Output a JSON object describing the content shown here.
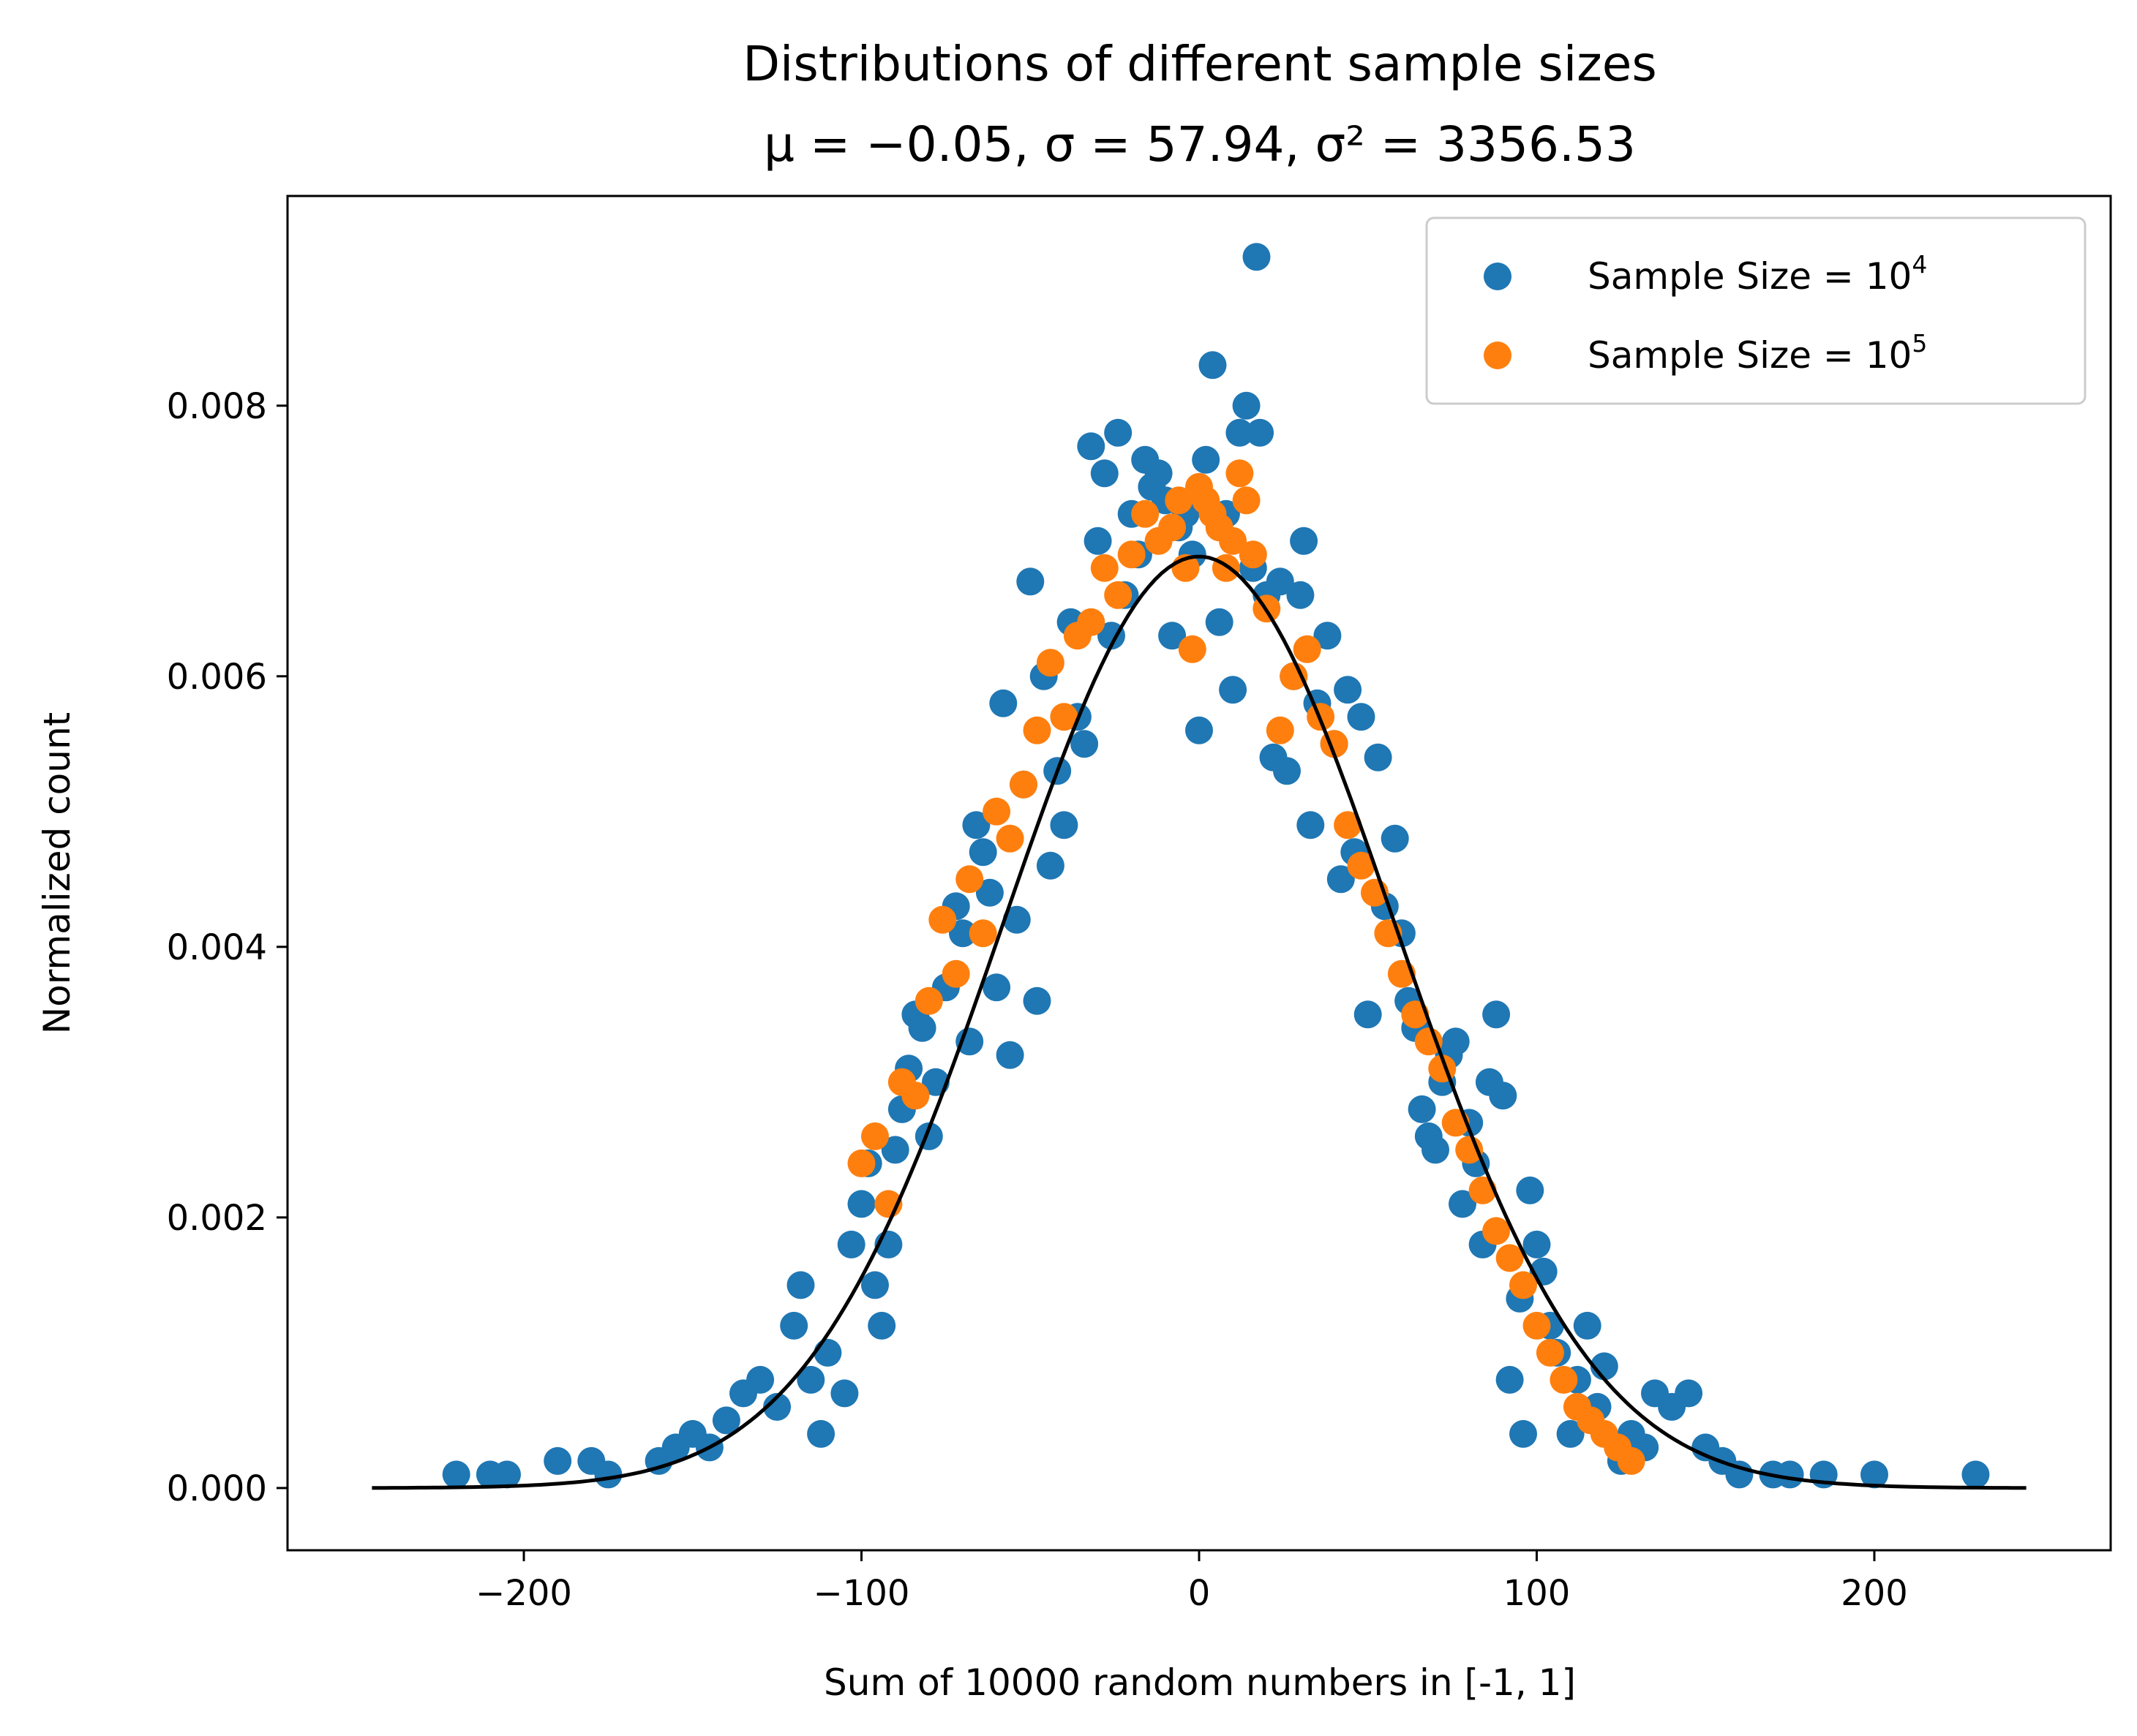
{
  "chart_data": {
    "type": "scatter",
    "title": "Distributions of different sample sizes",
    "subtitle": "μ = −0.05, σ = 57.94, σ² = 3356.53",
    "xlabel": "Sum of 10000 random numbers in [-1, 1]",
    "ylabel": "Normalized count",
    "xlim": [
      -270,
      270
    ],
    "ylim": [
      -0.00046,
      0.00955
    ],
    "xticks": [
      -200,
      -100,
      0,
      100,
      200
    ],
    "xtick_labels": [
      "−200",
      "−100",
      "0",
      "100",
      "200"
    ],
    "yticks": [
      0.0,
      0.002,
      0.004,
      0.006,
      0.008
    ],
    "ytick_labels": [
      "0.000",
      "0.002",
      "0.004",
      "0.006",
      "0.008"
    ],
    "grid": false,
    "legend_position": "top-right",
    "legend": [
      {
        "base": "Sample Size = 10",
        "exp": "4",
        "color": "#1f77b4"
      },
      {
        "base": "Sample Size = 10",
        "exp": "5",
        "color": "#ff7f0e"
      }
    ],
    "series": [
      {
        "color": "#1f77b4",
        "points": [
          [
            -220,
            0.0001
          ],
          [
            -210,
            0.0001
          ],
          [
            -205,
            0.0001
          ],
          [
            -190,
            0.0002
          ],
          [
            -180,
            0.0002
          ],
          [
            -175,
            0.0001
          ],
          [
            -160,
            0.0002
          ],
          [
            -155,
            0.0003
          ],
          [
            -150,
            0.0004
          ],
          [
            -145,
            0.0003
          ],
          [
            -140,
            0.0005
          ],
          [
            -135,
            0.0007
          ],
          [
            -130,
            0.0008
          ],
          [
            -125,
            0.0006
          ],
          [
            -120,
            0.0012
          ],
          [
            -118,
            0.0015
          ],
          [
            -115,
            0.0008
          ],
          [
            -112,
            0.0004
          ],
          [
            -110,
            0.001
          ],
          [
            -105,
            0.0007
          ],
          [
            -103,
            0.0018
          ],
          [
            -100,
            0.0021
          ],
          [
            -98,
            0.0024
          ],
          [
            -96,
            0.0015
          ],
          [
            -94,
            0.0012
          ],
          [
            -92,
            0.0018
          ],
          [
            -90,
            0.0025
          ],
          [
            -88,
            0.0028
          ],
          [
            -86,
            0.0031
          ],
          [
            -84,
            0.0035
          ],
          [
            -82,
            0.0034
          ],
          [
            -80,
            0.0026
          ],
          [
            -78,
            0.003
          ],
          [
            -75,
            0.0037
          ],
          [
            -72,
            0.0043
          ],
          [
            -70,
            0.0041
          ],
          [
            -68,
            0.0033
          ],
          [
            -66,
            0.0049
          ],
          [
            -64,
            0.0047
          ],
          [
            -62,
            0.0044
          ],
          [
            -60,
            0.0037
          ],
          [
            -58,
            0.0058
          ],
          [
            -56,
            0.0032
          ],
          [
            -54,
            0.0042
          ],
          [
            -52,
            0.0052
          ],
          [
            -50,
            0.0067
          ],
          [
            -48,
            0.0036
          ],
          [
            -46,
            0.006
          ],
          [
            -44,
            0.0046
          ],
          [
            -42,
            0.0053
          ],
          [
            -40,
            0.0049
          ],
          [
            -38,
            0.0064
          ],
          [
            -36,
            0.0057
          ],
          [
            -34,
            0.0055
          ],
          [
            -32,
            0.0077
          ],
          [
            -30,
            0.007
          ],
          [
            -28,
            0.0075
          ],
          [
            -26,
            0.0063
          ],
          [
            -24,
            0.0078
          ],
          [
            -22,
            0.0066
          ],
          [
            -20,
            0.0072
          ],
          [
            -18,
            0.0069
          ],
          [
            -16,
            0.0076
          ],
          [
            -14,
            0.0074
          ],
          [
            -12,
            0.0075
          ],
          [
            -10,
            0.0073
          ],
          [
            -8,
            0.0063
          ],
          [
            -6,
            0.0071
          ],
          [
            -4,
            0.0072
          ],
          [
            -2,
            0.0069
          ],
          [
            0,
            0.0056
          ],
          [
            2,
            0.0076
          ],
          [
            4,
            0.0083
          ],
          [
            6,
            0.0064
          ],
          [
            8,
            0.0072
          ],
          [
            10,
            0.0059
          ],
          [
            12,
            0.0078
          ],
          [
            14,
            0.008
          ],
          [
            16,
            0.0068
          ],
          [
            17,
            0.0091
          ],
          [
            18,
            0.0078
          ],
          [
            20,
            0.0066
          ],
          [
            22,
            0.0054
          ],
          [
            24,
            0.0067
          ],
          [
            26,
            0.0053
          ],
          [
            28,
            0.006
          ],
          [
            30,
            0.0066
          ],
          [
            31,
            0.007
          ],
          [
            33,
            0.0049
          ],
          [
            35,
            0.0058
          ],
          [
            38,
            0.0063
          ],
          [
            40,
            0.0055
          ],
          [
            42,
            0.0045
          ],
          [
            44,
            0.0059
          ],
          [
            46,
            0.0047
          ],
          [
            48,
            0.0057
          ],
          [
            50,
            0.0035
          ],
          [
            53,
            0.0054
          ],
          [
            55,
            0.0043
          ],
          [
            58,
            0.0048
          ],
          [
            60,
            0.0041
          ],
          [
            62,
            0.0036
          ],
          [
            64,
            0.0034
          ],
          [
            66,
            0.0028
          ],
          [
            68,
            0.0026
          ],
          [
            70,
            0.0025
          ],
          [
            72,
            0.003
          ],
          [
            74,
            0.0032
          ],
          [
            76,
            0.0033
          ],
          [
            78,
            0.0021
          ],
          [
            80,
            0.0027
          ],
          [
            82,
            0.0024
          ],
          [
            84,
            0.0018
          ],
          [
            86,
            0.003
          ],
          [
            88,
            0.0035
          ],
          [
            90,
            0.0029
          ],
          [
            92,
            0.0008
          ],
          [
            95,
            0.0014
          ],
          [
            96,
            0.0004
          ],
          [
            98,
            0.0022
          ],
          [
            100,
            0.0018
          ],
          [
            102,
            0.0016
          ],
          [
            104,
            0.0012
          ],
          [
            106,
            0.001
          ],
          [
            110,
            0.0004
          ],
          [
            112,
            0.0008
          ],
          [
            115,
            0.0012
          ],
          [
            118,
            0.0006
          ],
          [
            120,
            0.0009
          ],
          [
            125,
            0.0002
          ],
          [
            128,
            0.0004
          ],
          [
            132,
            0.0003
          ],
          [
            135,
            0.0007
          ],
          [
            140,
            0.0006
          ],
          [
            145,
            0.0007
          ],
          [
            150,
            0.0003
          ],
          [
            155,
            0.0002
          ],
          [
            160,
            0.0001
          ],
          [
            170,
            0.0001
          ],
          [
            175,
            0.0001
          ],
          [
            185,
            0.0001
          ],
          [
            200,
            0.0001
          ],
          [
            230,
            0.0001
          ]
        ]
      },
      {
        "color": "#ff7f0e",
        "points": [
          [
            -100,
            0.0024
          ],
          [
            -96,
            0.0026
          ],
          [
            -92,
            0.0021
          ],
          [
            -88,
            0.003
          ],
          [
            -84,
            0.0029
          ],
          [
            -80,
            0.0036
          ],
          [
            -76,
            0.0042
          ],
          [
            -72,
            0.0038
          ],
          [
            -68,
            0.0045
          ],
          [
            -64,
            0.0041
          ],
          [
            -60,
            0.005
          ],
          [
            -56,
            0.0048
          ],
          [
            -52,
            0.0052
          ],
          [
            -48,
            0.0056
          ],
          [
            -44,
            0.0061
          ],
          [
            -40,
            0.0057
          ],
          [
            -36,
            0.0063
          ],
          [
            -32,
            0.0064
          ],
          [
            -28,
            0.0068
          ],
          [
            -24,
            0.0066
          ],
          [
            -20,
            0.0069
          ],
          [
            -16,
            0.0072
          ],
          [
            -12,
            0.007
          ],
          [
            -8,
            0.0071
          ],
          [
            -6,
            0.0073
          ],
          [
            -4,
            0.0068
          ],
          [
            -2,
            0.0062
          ],
          [
            0,
            0.0074
          ],
          [
            2,
            0.0073
          ],
          [
            4,
            0.0072
          ],
          [
            6,
            0.0071
          ],
          [
            8,
            0.0068
          ],
          [
            10,
            0.007
          ],
          [
            12,
            0.0075
          ],
          [
            14,
            0.0073
          ],
          [
            16,
            0.0069
          ],
          [
            20,
            0.0065
          ],
          [
            24,
            0.0056
          ],
          [
            28,
            0.006
          ],
          [
            32,
            0.0062
          ],
          [
            36,
            0.0057
          ],
          [
            40,
            0.0055
          ],
          [
            44,
            0.0049
          ],
          [
            48,
            0.0046
          ],
          [
            52,
            0.0044
          ],
          [
            56,
            0.0041
          ],
          [
            60,
            0.0038
          ],
          [
            64,
            0.0035
          ],
          [
            68,
            0.0033
          ],
          [
            72,
            0.0031
          ],
          [
            76,
            0.0027
          ],
          [
            80,
            0.0025
          ],
          [
            84,
            0.0022
          ],
          [
            88,
            0.0019
          ],
          [
            92,
            0.0017
          ],
          [
            96,
            0.0015
          ],
          [
            100,
            0.0012
          ],
          [
            104,
            0.001
          ],
          [
            108,
            0.0008
          ],
          [
            112,
            0.0006
          ],
          [
            116,
            0.0005
          ],
          [
            120,
            0.0004
          ],
          [
            124,
            0.0003
          ],
          [
            128,
            0.0002
          ]
        ]
      }
    ],
    "fit": {
      "label": "",
      "color": "#000000",
      "mu": -0.05,
      "sigma": 57.94,
      "x_range": [
        -245,
        245
      ]
    }
  }
}
